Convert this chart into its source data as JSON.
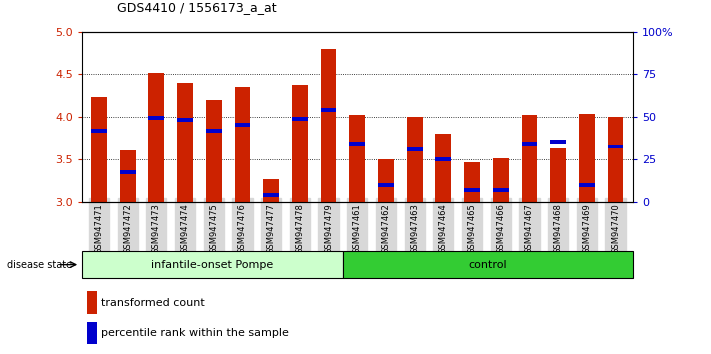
{
  "title": "GDS4410 / 1556173_a_at",
  "samples": [
    "GSM947471",
    "GSM947472",
    "GSM947473",
    "GSM947474",
    "GSM947475",
    "GSM947476",
    "GSM947477",
    "GSM947478",
    "GSM947479",
    "GSM947461",
    "GSM947462",
    "GSM947463",
    "GSM947464",
    "GSM947465",
    "GSM947466",
    "GSM947467",
    "GSM947468",
    "GSM947469",
    "GSM947470"
  ],
  "bar_values": [
    4.23,
    3.61,
    4.52,
    4.4,
    4.2,
    4.35,
    3.27,
    4.38,
    4.8,
    4.02,
    3.5,
    4.0,
    3.8,
    3.47,
    3.52,
    4.02,
    3.63,
    4.03,
    4.0
  ],
  "percentile_values": [
    3.83,
    3.35,
    3.99,
    3.96,
    3.83,
    3.9,
    3.08,
    3.97,
    4.08,
    3.68,
    3.2,
    3.62,
    3.5,
    3.14,
    3.14,
    3.68,
    3.7,
    3.2,
    3.65
  ],
  "group_labels": [
    "infantile-onset Pompe",
    "control"
  ],
  "group_counts": [
    9,
    10
  ],
  "y_min": 3.0,
  "y_max": 5.0,
  "y_ticks_left": [
    3.0,
    3.5,
    4.0,
    4.5,
    5.0
  ],
  "y_ticks_right": [
    0,
    25,
    50,
    75,
    100
  ],
  "bar_color": "#cc2200",
  "percentile_color": "#0000cc",
  "legend_items": [
    "transformed count",
    "percentile rank within the sample"
  ],
  "light_green": "#ccffcc",
  "dark_green": "#33cc33"
}
